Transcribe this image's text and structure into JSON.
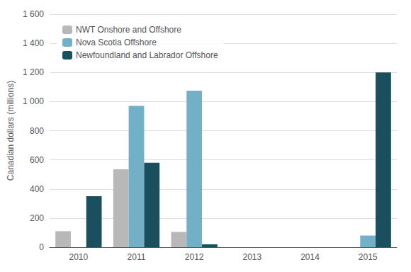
{
  "chart_data": {
    "type": "bar",
    "categories": [
      "2010",
      "2011",
      "2012",
      "2013",
      "2014",
      "2015"
    ],
    "series": [
      {
        "name": "NWT Onshore and Offshore",
        "color": "#b8b8b8",
        "values": [
          110,
          535,
          105,
          0,
          0,
          0
        ]
      },
      {
        "name": "Nova Scotia Offshore",
        "color": "#72b0c8",
        "values": [
          0,
          970,
          1075,
          0,
          0,
          80
        ]
      },
      {
        "name": "Newfoundland and Labrador Offshore",
        "color": "#1a4f5e",
        "values": [
          350,
          580,
          20,
          0,
          0,
          1200
        ]
      }
    ],
    "ylabel": "Canadian dollars (millions)",
    "ylim": [
      0,
      1600
    ],
    "yticks": [
      0,
      200,
      400,
      600,
      800,
      {
        "value": 1000,
        "label": "1 000"
      },
      {
        "value": 1200,
        "label": "1 200"
      },
      {
        "value": 1400,
        "label": "1 400"
      },
      {
        "value": 1600,
        "label": "1 600"
      }
    ],
    "grid": true,
    "legend": "upper left"
  }
}
